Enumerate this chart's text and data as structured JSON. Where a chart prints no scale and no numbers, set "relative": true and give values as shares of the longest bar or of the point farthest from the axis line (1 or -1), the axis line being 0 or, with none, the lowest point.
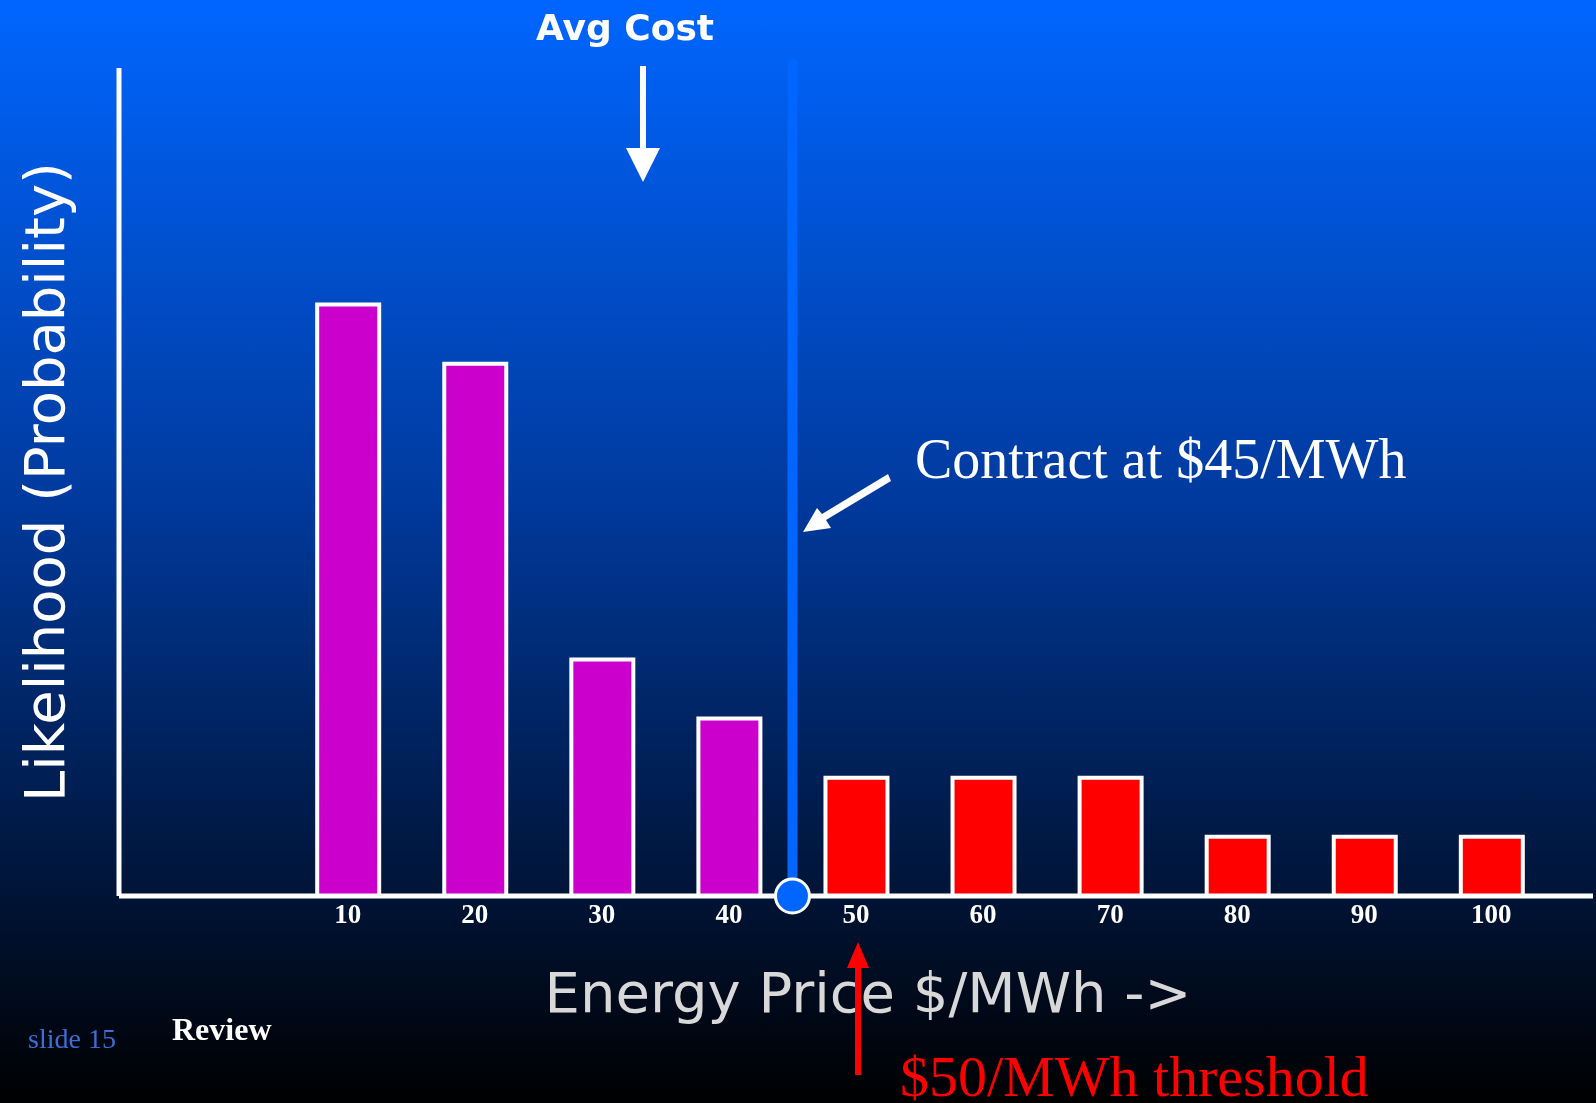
{
  "chart_data": {
    "type": "bar",
    "relative": true,
    "xlabel": "Energy Price $/MWh ->",
    "ylabel": "Likelihood (Probability)",
    "x": [
      10,
      20,
      30,
      40,
      50,
      60,
      70,
      80,
      90,
      100
    ],
    "values": [
      1,
      0.9,
      0.4,
      0.3,
      0.2,
      0.2,
      0.2,
      0.1,
      0.1,
      0.1
    ],
    "colors": [
      "#cc00cc",
      "#cc00cc",
      "#cc00cc",
      "#cc00cc",
      "#ff0000",
      "#ff0000",
      "#ff0000",
      "#ff0000",
      "#ff0000",
      "#ff0000"
    ],
    "xlim": [
      -8,
      108
    ],
    "xticks": [
      10,
      20,
      30,
      40,
      50,
      60,
      70,
      80,
      90,
      100
    ],
    "ref_lines": [
      {
        "axis": "x",
        "value": 45,
        "label": "Contract at $45/MWh",
        "color": "#0066ff"
      }
    ],
    "annotations": [
      "Avg Cost",
      "$50/MWh threshold",
      "slide 15",
      "Review"
    ]
  }
}
